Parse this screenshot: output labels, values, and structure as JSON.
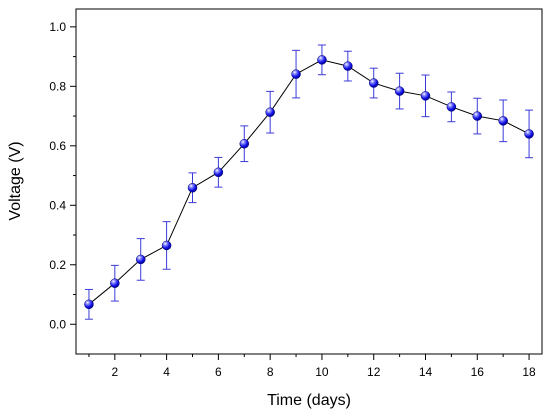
{
  "chart_data": {
    "type": "line",
    "title": "",
    "xlabel": "Time (days)",
    "ylabel": "Voltage (V)",
    "xlim": [
      0.5,
      18.5
    ],
    "ylim": [
      -0.1,
      1.06
    ],
    "x_ticks": [
      2,
      4,
      6,
      8,
      10,
      12,
      14,
      16,
      18
    ],
    "x_tick_labels": [
      "2",
      "4",
      "6",
      "8",
      "10",
      "12",
      "14",
      "16",
      "18"
    ],
    "y_ticks": [
      0.0,
      0.2,
      0.4,
      0.6,
      0.8,
      1.0
    ],
    "y_tick_labels": [
      "0.0",
      "0.2",
      "0.4",
      "0.6",
      "0.8",
      "1.0"
    ],
    "grid": false,
    "legend": "none",
    "series": [
      {
        "x": [
          1,
          2,
          3,
          4,
          5,
          6,
          7,
          8,
          9,
          10,
          11,
          12,
          13,
          14,
          15,
          16,
          17,
          18
        ],
        "y": [
          0.067,
          0.138,
          0.218,
          0.265,
          0.459,
          0.511,
          0.607,
          0.713,
          0.841,
          0.889,
          0.868,
          0.811,
          0.784,
          0.768,
          0.731,
          0.7,
          0.684,
          0.64
        ],
        "err": [
          0.05,
          0.06,
          0.07,
          0.08,
          0.05,
          0.05,
          0.06,
          0.07,
          0.08,
          0.05,
          0.05,
          0.05,
          0.06,
          0.07,
          0.05,
          0.06,
          0.07,
          0.08
        ],
        "color": "#0000ff",
        "error_color": "#3b3bd8",
        "line_color": "#000000"
      }
    ]
  }
}
